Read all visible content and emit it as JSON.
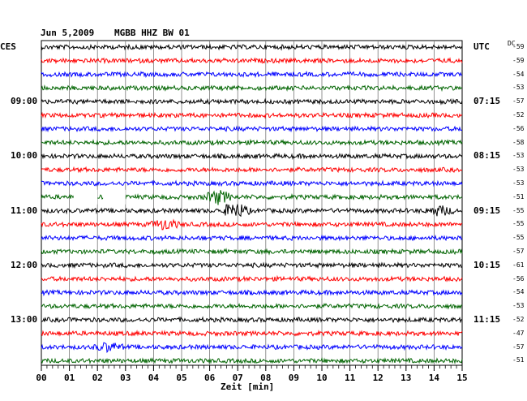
{
  "header": {
    "date": "Jun 5,2009",
    "station": "MGBB HHZ BW 01",
    "left_tz": "CES",
    "right_tz": "UTC",
    "dc_label": "DC"
  },
  "chart_data": {
    "type": "helicorder",
    "title": "",
    "xlabel": "Zeit [min]",
    "xlim": [
      0,
      15
    ],
    "x_ticks": [
      "00",
      "01",
      "02",
      "03",
      "04",
      "05",
      "06",
      "07",
      "08",
      "09",
      "10",
      "11",
      "12",
      "13",
      "14",
      "15"
    ],
    "line_colors": [
      "#000000",
      "#ff0000",
      "#0000ff",
      "#006400"
    ],
    "left_hour_labels": [
      {
        "row": 4,
        "text": "09:00"
      },
      {
        "row": 8,
        "text": "10:00"
      },
      {
        "row": 12,
        "text": "11:00"
      },
      {
        "row": 16,
        "text": "12:00"
      },
      {
        "row": 20,
        "text": "13:00"
      }
    ],
    "right_hour_labels": [
      {
        "row": 0,
        "text": "UTC"
      },
      {
        "row": 4,
        "text": "07:15"
      },
      {
        "row": 8,
        "text": "08:15"
      },
      {
        "row": 12,
        "text": "09:15"
      },
      {
        "row": 16,
        "text": "10:15"
      },
      {
        "row": 20,
        "text": "11:15"
      }
    ],
    "dc_offsets": [
      -59,
      -59,
      -54,
      -53,
      -57,
      -52,
      -56,
      -58,
      -53,
      -53,
      -53,
      -51,
      -55,
      -55,
      -55,
      -57,
      -61,
      -56,
      -54,
      -53,
      -52,
      -47,
      -57,
      -51
    ],
    "rows": 24,
    "gaps": [
      {
        "row": 11,
        "from_min": 1.15,
        "to_min": 2.0
      },
      {
        "row": 11,
        "from_min": 2.2,
        "to_min": 3.0
      }
    ],
    "events": [
      {
        "row": 11,
        "min": 6.3,
        "amp": 3.0
      },
      {
        "row": 12,
        "min": 6.9,
        "amp": 3.5
      },
      {
        "row": 12,
        "min": 14.2,
        "amp": 2.0
      },
      {
        "row": 13,
        "min": 4.4,
        "amp": 2.2
      },
      {
        "row": 22,
        "min": 2.4,
        "amp": 1.8
      }
    ]
  }
}
